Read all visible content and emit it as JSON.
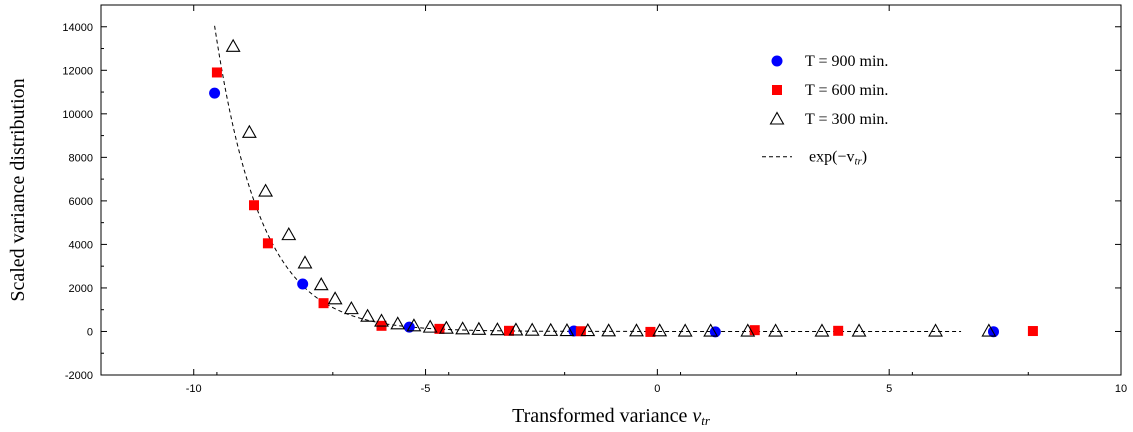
{
  "chart_data": {
    "type": "scatter",
    "xlabel": "Transformed variance",
    "xlabel_var": "v",
    "xlabel_sub": "tr",
    "ylabel": "Scaled variance distribution",
    "xlim": [
      -12,
      10
    ],
    "ylim": [
      -2000,
      15000
    ],
    "x_ticks": [
      -10,
      -5,
      0,
      5,
      10
    ],
    "y_ticks": [
      -2000,
      0,
      2000,
      4000,
      6000,
      8000,
      10000,
      12000,
      14000
    ],
    "grid": false,
    "legend_position": "top-right",
    "series": [
      {
        "name": "T = 900 min.",
        "marker": "circle",
        "color": "#0000ff",
        "x": [
          -9.55,
          -7.65,
          -5.35,
          -1.8,
          1.25,
          7.25
        ],
        "y": [
          10950,
          2180,
          200,
          20,
          -20,
          -10
        ]
      },
      {
        "name": "T = 600 min.",
        "marker": "square",
        "color": "#ff0000",
        "x": [
          -9.5,
          -8.7,
          -8.4,
          -7.2,
          -5.95,
          -4.7,
          -3.2,
          -1.65,
          -0.15,
          2.1,
          3.9,
          8.1
        ],
        "y": [
          11900,
          5800,
          4050,
          1300,
          260,
          120,
          30,
          10,
          -20,
          60,
          30,
          20
        ]
      },
      {
        "name": "T = 300 min.",
        "marker": "triangle",
        "color": "#000000",
        "x": [
          -9.15,
          -8.8,
          -8.45,
          -7.95,
          -7.6,
          -7.25,
          -6.95,
          -6.6,
          -6.25,
          -5.95,
          -5.6,
          -5.25,
          -4.9,
          -4.55,
          -4.2,
          -3.85,
          -3.45,
          -3.05,
          -2.7,
          -2.3,
          -1.95,
          -1.5,
          -1.05,
          -0.45,
          0.05,
          0.6,
          1.15,
          1.95,
          2.55,
          3.55,
          4.35,
          6.0,
          7.15
        ],
        "y": [
          13100,
          9150,
          6450,
          4450,
          3150,
          2150,
          1500,
          1050,
          700,
          480,
          350,
          260,
          200,
          150,
          120,
          100,
          80,
          70,
          60,
          50,
          40,
          40,
          30,
          30,
          30,
          20,
          20,
          20,
          20,
          20,
          20,
          20,
          20
        ]
      },
      {
        "name": "exp(−v",
        "name_sub": "tr",
        "name_tail": ")",
        "marker": "dashed-line",
        "color": "#000000",
        "function": "exp(-x)",
        "x_range": [
          -9.55,
          6.55
        ]
      }
    ]
  }
}
